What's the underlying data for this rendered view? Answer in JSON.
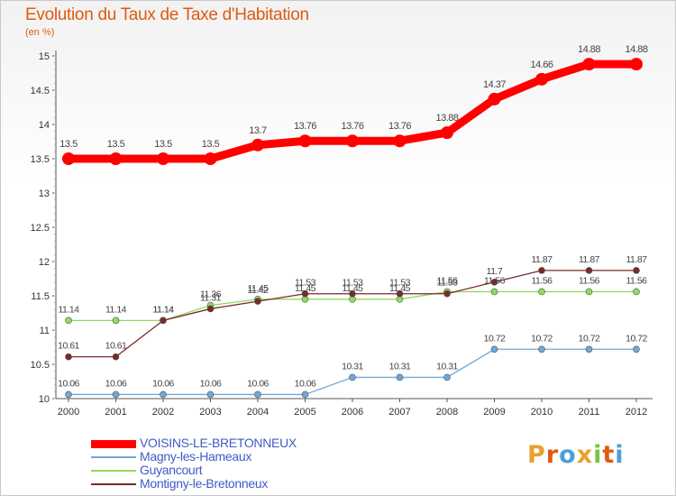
{
  "title": "Evolution du Taux de Taxe d'Habitation",
  "unit": "(en %)",
  "brand": {
    "text": "Proxiti",
    "letters": [
      "P",
      "r",
      "o",
      "x",
      "i",
      "t",
      "i"
    ],
    "colors": [
      "#e8a030",
      "#e05a10",
      "#4aa0d8",
      "#e8a030",
      "#7bc443",
      "#e05a10",
      "#4aa0d8"
    ]
  },
  "chart_data": {
    "type": "line",
    "x": [
      "2000",
      "2001",
      "2002",
      "2003",
      "2004",
      "2005",
      "2006",
      "2007",
      "2008",
      "2009",
      "2010",
      "2011",
      "2012"
    ],
    "ylim": [
      10,
      15
    ],
    "yticks": [
      "10",
      "10.5",
      "11",
      "11.5",
      "12",
      "12.5",
      "13",
      "13.5",
      "14",
      "14.5",
      "15"
    ],
    "grid": false,
    "legend_position": "bottom-left",
    "series": [
      {
        "name": "VOISINS-LE-BRETONNEUX",
        "color": "#ff0000",
        "values": [
          13.5,
          13.5,
          13.5,
          13.5,
          13.7,
          13.76,
          13.76,
          13.76,
          13.88,
          14.37,
          14.66,
          14.88,
          14.88
        ],
        "labels": [
          "13.5",
          "13.5",
          "13.5",
          "13.5",
          "13.7",
          "13.76",
          "13.76",
          "13.76",
          "13.88",
          "14.37",
          "14.66",
          "14.88",
          "14.88"
        ]
      },
      {
        "name": "Magny-les-Hameaux",
        "color": "#6fa8d8",
        "values": [
          10.06,
          10.06,
          10.06,
          10.06,
          10.06,
          10.06,
          10.31,
          10.31,
          10.31,
          10.72,
          10.72,
          10.72,
          10.72
        ],
        "labels": [
          "10.06",
          "10.06",
          "10.06",
          "10.06",
          "10.06",
          "10.06",
          "10.31",
          "10.31",
          "10.31",
          "10.72",
          "10.72",
          "10.72",
          "10.72"
        ]
      },
      {
        "name": "Guyancourt",
        "color": "#8fdc5c",
        "values": [
          11.14,
          11.14,
          11.14,
          11.36,
          11.45,
          11.45,
          11.45,
          11.45,
          11.56,
          11.56,
          11.56,
          11.56,
          11.56
        ],
        "labels": [
          "11.14",
          "11.14",
          "11.14",
          "11.36",
          "11.45",
          "11.45",
          "11.45",
          "11.45",
          "11.56",
          "11.56",
          "11.56",
          "11.56",
          "11.56"
        ]
      },
      {
        "name": "Montigny-le-Bretonneux",
        "color": "#7a2a2a",
        "values": [
          10.61,
          10.61,
          11.14,
          11.31,
          11.42,
          11.53,
          11.53,
          11.53,
          11.53,
          11.7,
          11.87,
          11.87,
          11.87
        ],
        "labels": [
          "10.61",
          "10.61",
          "11.14",
          "11.31",
          "11.42",
          "11.53",
          "11.53",
          "11.53",
          "11.53",
          "11.7",
          "11.87",
          "11.87",
          "11.87"
        ]
      }
    ]
  }
}
